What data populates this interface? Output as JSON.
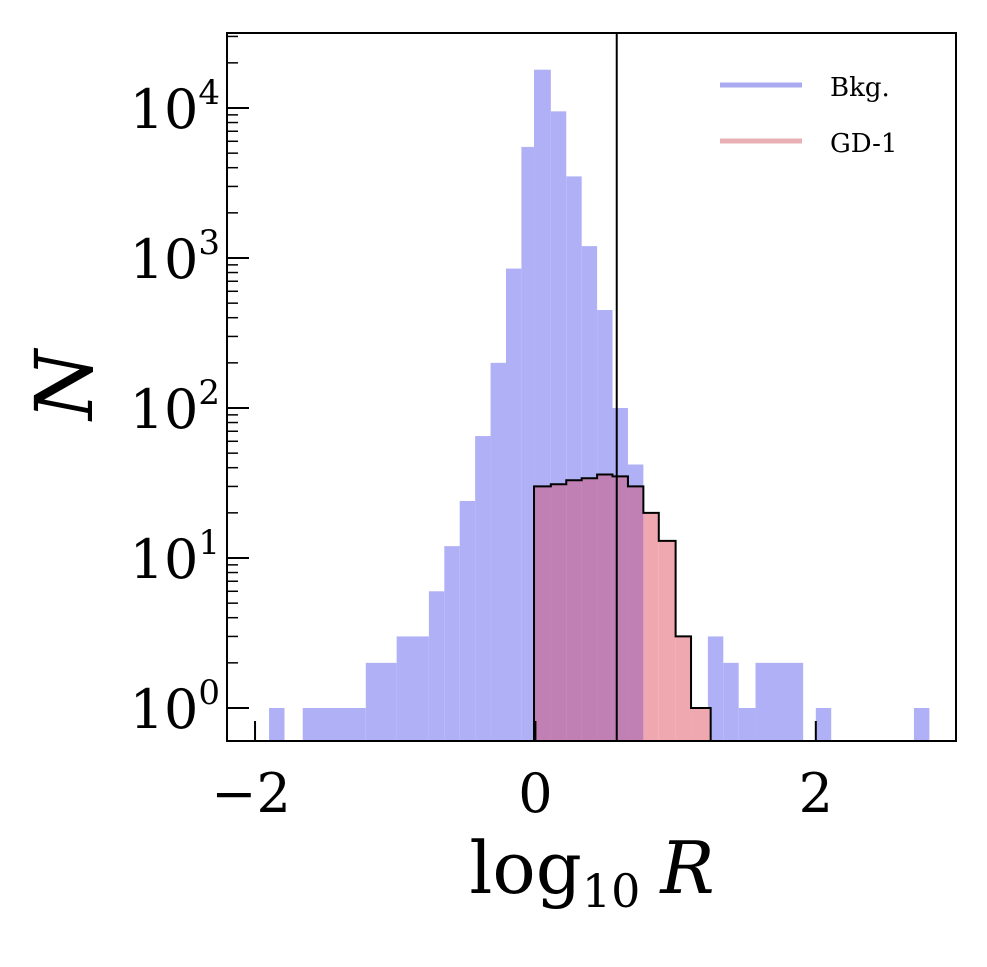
{
  "chart_data": {
    "type": "histogram",
    "y_scale": "log",
    "xlabel": {
      "base": "log",
      "sub": "10",
      "var": "R"
    },
    "ylabel": "N",
    "xlim": [
      -2.2,
      3.0
    ],
    "ylim_log10": [
      -0.22,
      4.5
    ],
    "x_ticks": [
      {
        "value": -2,
        "label": "−2"
      },
      {
        "value": 0,
        "label": "0"
      },
      {
        "value": 2,
        "label": "2"
      }
    ],
    "y_ticks": [
      {
        "exp": 0,
        "base": "10",
        "sup": "0"
      },
      {
        "exp": 1,
        "base": "10",
        "sup": "1"
      },
      {
        "exp": 2,
        "base": "10",
        "sup": "2"
      },
      {
        "exp": 3,
        "base": "10",
        "sup": "3"
      },
      {
        "exp": 4,
        "base": "10",
        "sup": "4"
      }
    ],
    "vline_x": 0.58,
    "colors": {
      "bkg_fill": "#b0b0f7",
      "gd1_fill": "#f0a8b0",
      "overlap_fill": "#c080b4",
      "outline": "#000000",
      "legend_bkg_line": "#aaaaf0",
      "legend_gd1_line": "#e8b0b4"
    },
    "series": [
      {
        "name": "Bkg.",
        "style": "filled",
        "bins": [
          {
            "x0": -1.9,
            "x1": -1.79,
            "count": 1
          },
          {
            "x0": -1.66,
            "x1": -1.21,
            "count": 1
          },
          {
            "x0": -1.21,
            "x1": -0.99,
            "count": 2
          },
          {
            "x0": -0.99,
            "x1": -0.76,
            "count": 3
          },
          {
            "x0": -0.76,
            "x1": -0.65,
            "count": 6
          },
          {
            "x0": -0.65,
            "x1": -0.54,
            "count": 12
          },
          {
            "x0": -0.54,
            "x1": -0.43,
            "count": 24
          },
          {
            "x0": -0.43,
            "x1": -0.32,
            "count": 65
          },
          {
            "x0": -0.32,
            "x1": -0.21,
            "count": 200
          },
          {
            "x0": -0.21,
            "x1": -0.1,
            "count": 850
          },
          {
            "x0": -0.1,
            "x1": -0.01,
            "count": 5500
          },
          {
            "x0": -0.01,
            "x1": 0.11,
            "count": 18000
          },
          {
            "x0": 0.11,
            "x1": 0.22,
            "count": 9500
          },
          {
            "x0": 0.22,
            "x1": 0.33,
            "count": 3500
          },
          {
            "x0": 0.33,
            "x1": 0.44,
            "count": 1200
          },
          {
            "x0": 0.44,
            "x1": 0.55,
            "count": 450
          },
          {
            "x0": 0.55,
            "x1": 0.66,
            "count": 100
          },
          {
            "x0": 0.66,
            "x1": 0.77,
            "count": 42
          },
          {
            "x0": 1.23,
            "x1": 1.34,
            "count": 3
          },
          {
            "x0": 1.34,
            "x1": 1.45,
            "count": 2
          },
          {
            "x0": 1.45,
            "x1": 1.57,
            "count": 1
          },
          {
            "x0": 1.57,
            "x1": 1.91,
            "count": 2
          },
          {
            "x0": 2.0,
            "x1": 2.11,
            "count": 1
          },
          {
            "x0": 2.7,
            "x1": 2.81,
            "count": 1
          }
        ]
      },
      {
        "name": "GD-1",
        "style": "step-filled",
        "bins": [
          {
            "x0": -0.01,
            "x1": 0.11,
            "count": 30
          },
          {
            "x0": 0.11,
            "x1": 0.22,
            "count": 31
          },
          {
            "x0": 0.22,
            "x1": 0.33,
            "count": 33
          },
          {
            "x0": 0.33,
            "x1": 0.44,
            "count": 34
          },
          {
            "x0": 0.44,
            "x1": 0.55,
            "count": 36
          },
          {
            "x0": 0.55,
            "x1": 0.66,
            "count": 35
          },
          {
            "x0": 0.66,
            "x1": 0.77,
            "count": 30
          },
          {
            "x0": 0.77,
            "x1": 0.88,
            "count": 20
          },
          {
            "x0": 0.88,
            "x1": 1.0,
            "count": 13
          },
          {
            "x0": 1.0,
            "x1": 1.11,
            "count": 3
          },
          {
            "x0": 1.11,
            "x1": 1.25,
            "count": 1
          }
        ]
      }
    ],
    "legend": {
      "position": "top-right",
      "entries": [
        {
          "label": "Bkg.",
          "color_key": "legend_bkg_line"
        },
        {
          "label": "GD-1",
          "color_key": "legend_gd1_line"
        }
      ]
    }
  }
}
